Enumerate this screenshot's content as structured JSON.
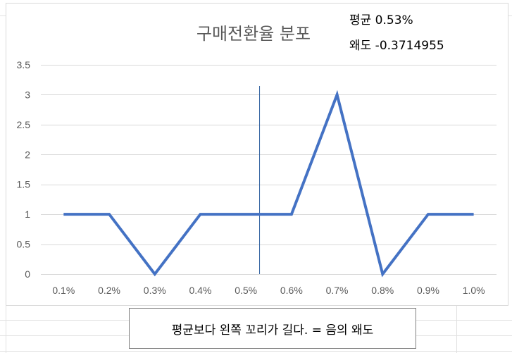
{
  "chart_data": {
    "type": "line",
    "title": "구매전환율 분포",
    "categories": [
      "0.1%",
      "0.2%",
      "0.3%",
      "0.4%",
      "0.5%",
      "0.6%",
      "0.7%",
      "0.8%",
      "0.9%",
      "1.0%"
    ],
    "values": [
      1,
      1,
      0,
      1,
      1,
      1,
      3,
      0,
      1,
      1
    ],
    "ylim": [
      0,
      3.5
    ],
    "yticks": [
      "0",
      "0.5",
      "1",
      "1.5",
      "2",
      "2.5",
      "3",
      "3.5"
    ],
    "ytick_values": [
      0,
      0.5,
      1,
      1.5,
      2,
      2.5,
      3,
      3.5
    ],
    "grid": true,
    "mean_marker_x": 0.53,
    "colors": {
      "series": "#4472c4",
      "marker": "#2e5f9e",
      "grid": "#d9d9d9"
    }
  },
  "stats": {
    "mean_text": "평균 0.53%",
    "skew_text": "왜도 -0.3714955"
  },
  "caption": "평균보다 왼쪽 꼬리가 길다. = 음의 왜도"
}
